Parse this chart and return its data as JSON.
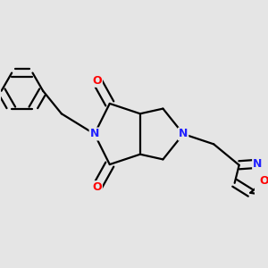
{
  "background_color": "#e5e5e5",
  "bond_color": "#000000",
  "N_color": "#2020ff",
  "O_color": "#ff0000",
  "bond_width": 1.6,
  "figsize": [
    3.0,
    3.0
  ],
  "dpi": 100,
  "xlim": [
    0.0,
    1.0
  ],
  "ylim": [
    0.15,
    0.85
  ]
}
